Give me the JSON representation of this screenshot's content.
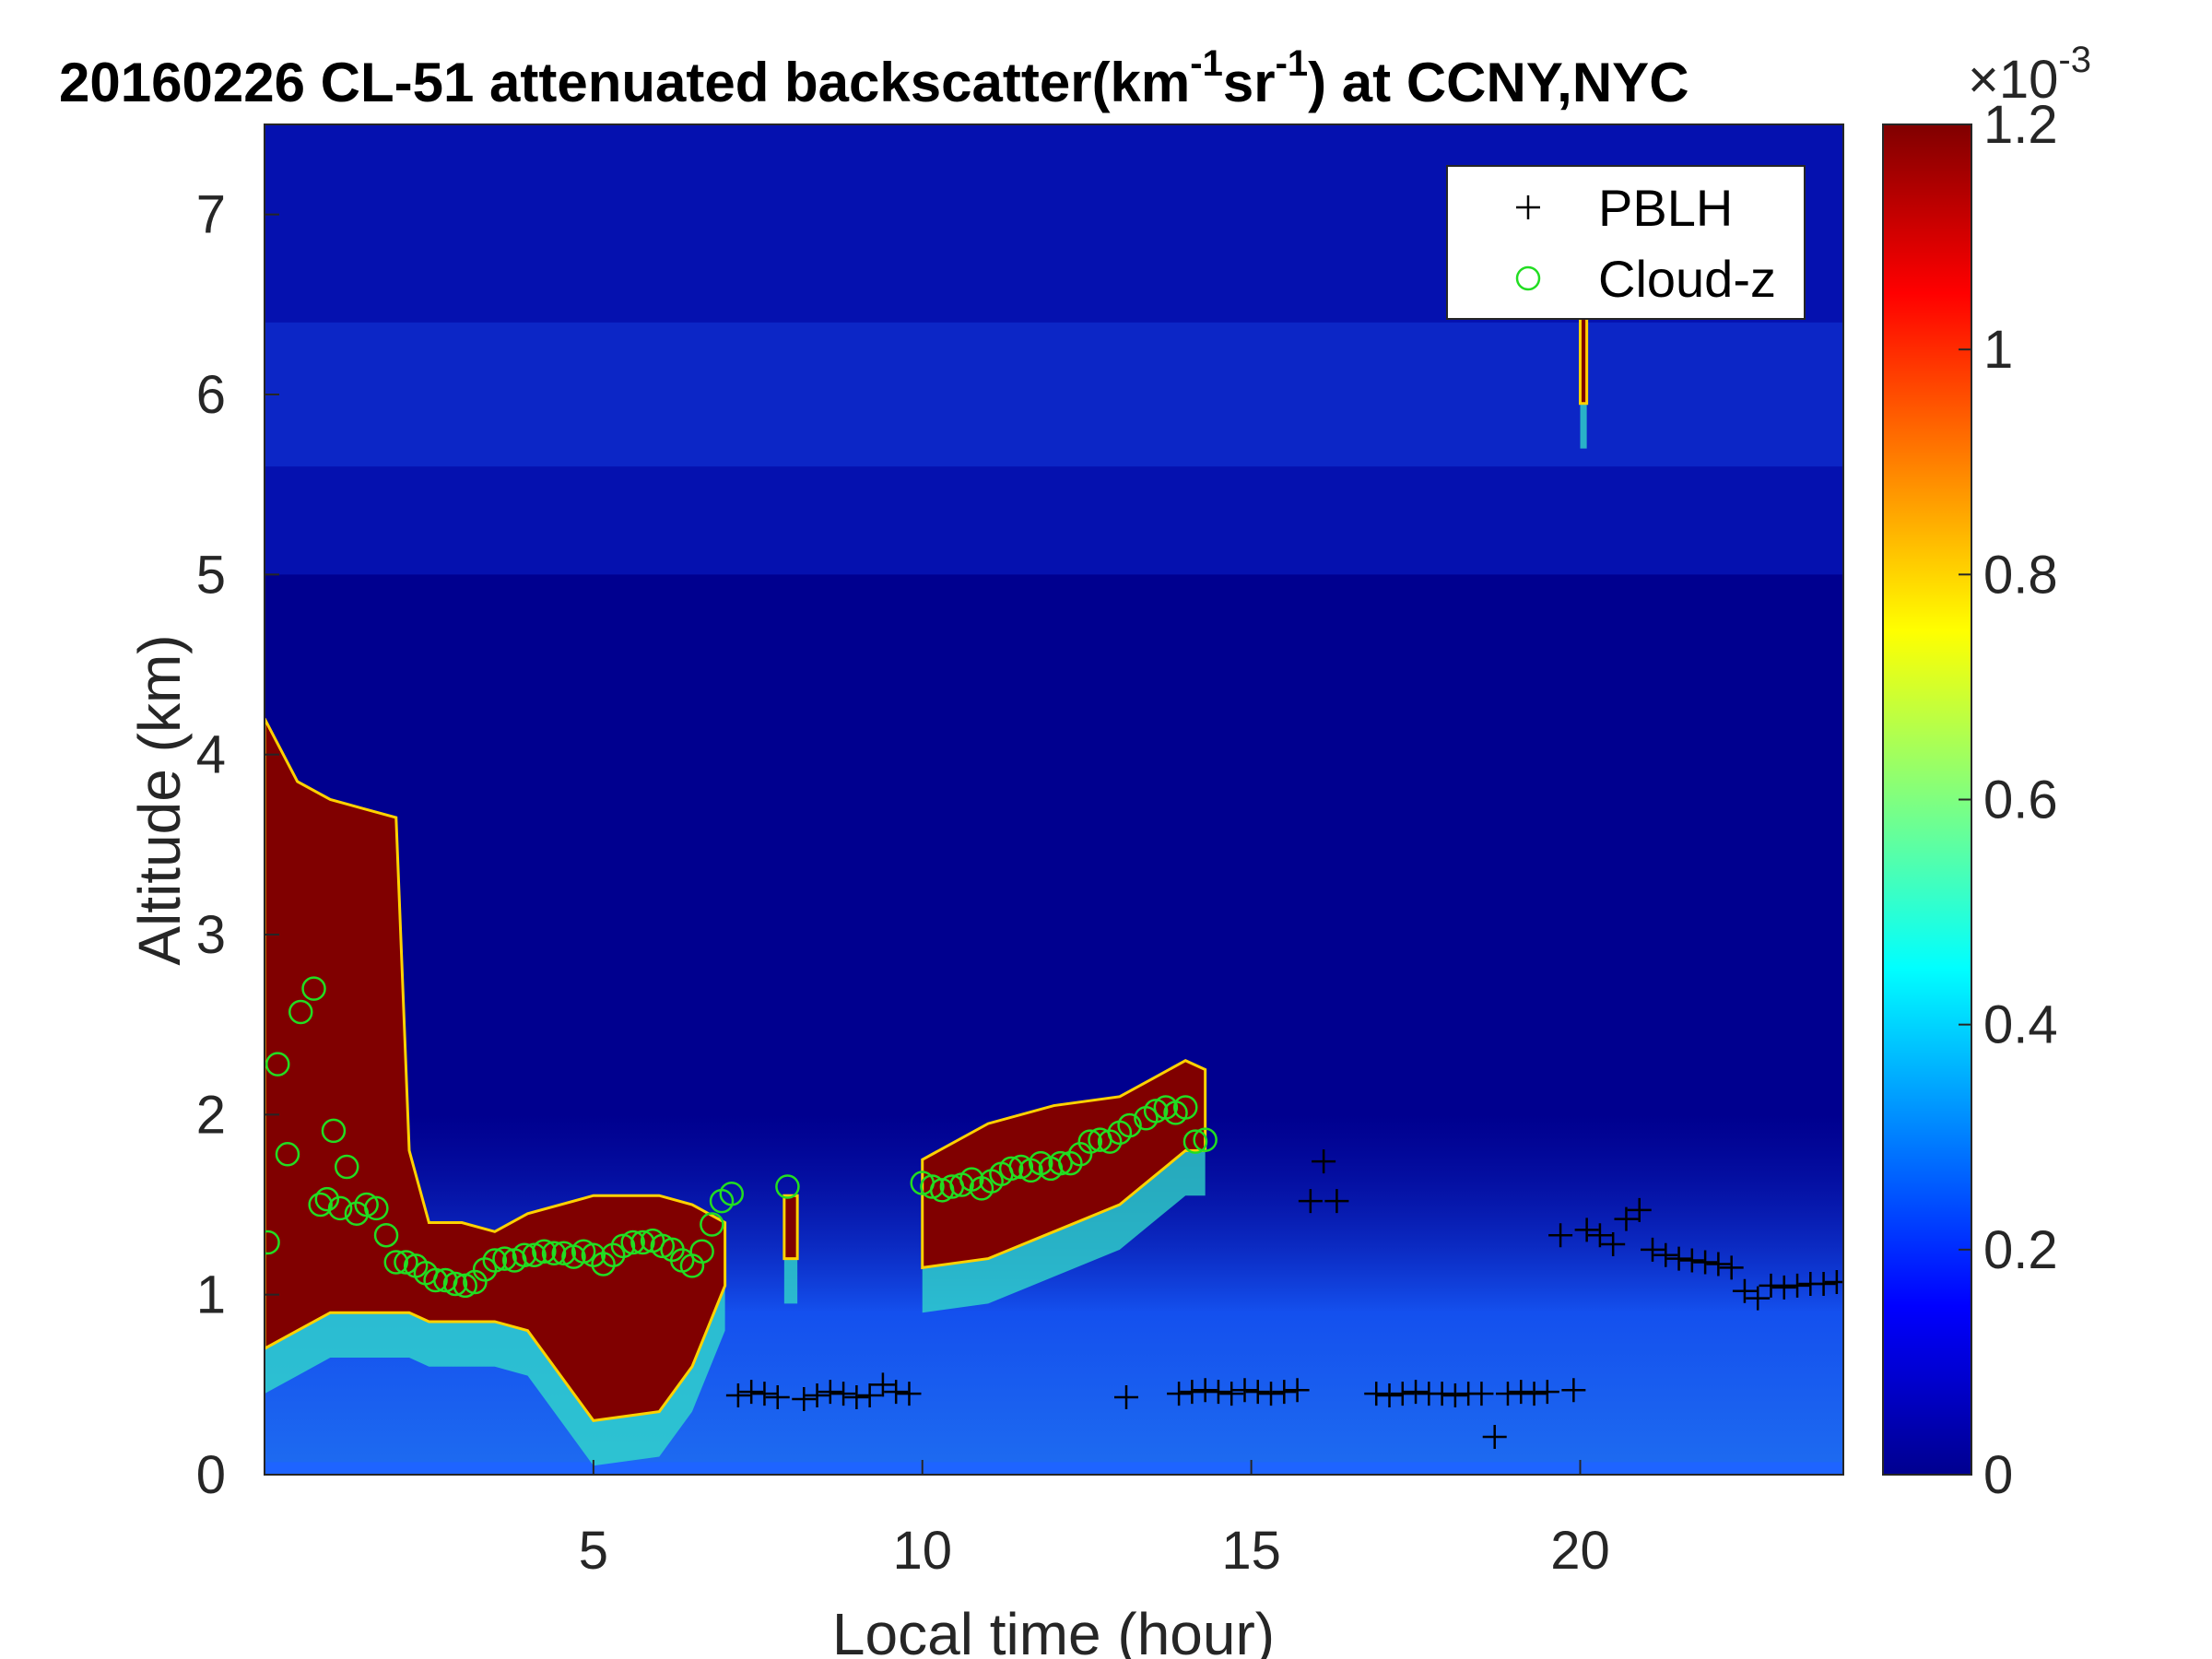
{
  "chart_data": {
    "type": "heatmap",
    "title": {
      "prefix": "20160226  CL-51 attenuated backscatter(km",
      "sup1": "-1",
      "mid": "sr",
      "sup2": "-1",
      "suffix": ") at CCNY,NYC"
    },
    "xlabel": "Local time (hour)",
    "ylabel": "Altitude (km)",
    "xlim": [
      0,
      24
    ],
    "ylim": [
      0,
      7.5
    ],
    "xticks": [
      "5",
      "10",
      "15",
      "20"
    ],
    "xtick_values": [
      5,
      10,
      15,
      20
    ],
    "yticks": [
      "0",
      "1",
      "2",
      "3",
      "4",
      "5",
      "6",
      "7"
    ],
    "ytick_values": [
      0,
      1,
      2,
      3,
      4,
      5,
      6,
      7
    ],
    "colorbar": {
      "colormap": "jet",
      "range": [
        0,
        0.0012
      ],
      "ticks": [
        "0",
        "0.2",
        "0.4",
        "0.6",
        "0.8",
        "1",
        "1.2"
      ],
      "tick_values": [
        0,
        0.2,
        0.4,
        0.6,
        0.8,
        1.0,
        1.2
      ],
      "exponent_label": "×10",
      "exponent_sup": "-3"
    },
    "legend": {
      "placement": "top-right",
      "entries": [
        {
          "label": "PBLH",
          "marker": "+",
          "color": "#000000"
        },
        {
          "label": "Cloud-z",
          "marker": "o",
          "color": "#22dd22"
        }
      ]
    },
    "cloud_layers": [
      {
        "x": [
          0.0,
          0.5,
          1.0,
          1.5,
          2.0,
          2.2,
          2.5,
          3.0,
          3.5,
          4.0,
          5.0,
          6.0,
          6.5,
          7.0
        ],
        "top": [
          4.2,
          3.85,
          3.75,
          3.7,
          3.65,
          1.8,
          1.4,
          1.4,
          1.35,
          1.45,
          1.55,
          1.55,
          1.5,
          1.4
        ],
        "bottom": [
          0.7,
          0.8,
          0.9,
          0.9,
          0.9,
          0.9,
          0.85,
          0.85,
          0.85,
          0.8,
          0.3,
          0.35,
          0.6,
          1.05
        ]
      },
      {
        "x": [
          7.9,
          8.1
        ],
        "top": [
          1.55,
          1.55
        ],
        "bottom": [
          1.2,
          1.2
        ]
      },
      {
        "x": [
          10.0,
          11.0,
          12.0,
          13.0,
          13.5,
          14.0,
          14.3
        ],
        "top": [
          1.75,
          1.95,
          2.05,
          2.1,
          2.2,
          2.3,
          2.25
        ],
        "bottom": [
          1.15,
          1.2,
          1.35,
          1.5,
          1.65,
          1.8,
          1.8
        ]
      },
      {
        "x": [
          20.0,
          20.1
        ],
        "top": [
          6.45,
          6.45
        ],
        "bottom": [
          5.95,
          5.95
        ]
      }
    ],
    "series": [
      {
        "name": "PBLH",
        "marker": "+",
        "x": [
          7.2,
          7.4,
          7.6,
          7.8,
          8.2,
          8.4,
          8.6,
          8.8,
          9.0,
          9.2,
          9.4,
          9.6,
          9.8,
          13.1,
          13.9,
          14.1,
          14.3,
          14.5,
          14.7,
          14.9,
          15.1,
          15.3,
          15.5,
          15.7,
          15.9,
          16.1,
          16.3,
          16.9,
          17.1,
          17.3,
          17.5,
          17.7,
          17.9,
          18.1,
          18.3,
          18.5,
          18.7,
          18.9,
          19.1,
          19.3,
          19.5,
          19.7,
          19.9,
          20.1,
          20.3,
          20.5,
          20.7,
          20.9,
          21.1,
          21.3,
          21.5,
          21.7,
          21.9,
          22.1,
          22.3,
          22.5,
          22.7,
          22.9,
          23.1,
          23.3,
          23.5,
          23.7,
          23.9
        ],
        "y": [
          0.44,
          0.46,
          0.45,
          0.43,
          0.42,
          0.44,
          0.46,
          0.45,
          0.43,
          0.44,
          0.5,
          0.46,
          0.45,
          0.43,
          0.45,
          0.46,
          0.47,
          0.46,
          0.45,
          0.47,
          0.46,
          0.45,
          0.46,
          0.47,
          1.52,
          1.74,
          1.52,
          0.45,
          0.44,
          0.45,
          0.46,
          0.45,
          0.45,
          0.44,
          0.45,
          0.45,
          0.21,
          0.45,
          0.46,
          0.45,
          0.46,
          1.33,
          0.47,
          1.36,
          1.33,
          1.28,
          1.42,
          1.47,
          1.25,
          1.22,
          1.2,
          1.19,
          1.18,
          1.17,
          1.15,
          1.02,
          0.98,
          1.05,
          1.04,
          1.05,
          1.06,
          1.06,
          1.07
        ]
      },
      {
        "name": "Cloud-z",
        "marker": "o",
        "x": [
          0.05,
          0.2,
          0.35,
          0.55,
          0.75,
          0.85,
          0.95,
          1.05,
          1.15,
          1.25,
          1.4,
          1.55,
          1.7,
          1.85,
          2.0,
          2.15,
          2.3,
          2.45,
          2.6,
          2.75,
          2.9,
          3.05,
          3.2,
          3.35,
          3.5,
          3.65,
          3.8,
          3.95,
          4.1,
          4.25,
          4.4,
          4.55,
          4.7,
          4.85,
          5.0,
          5.15,
          5.3,
          5.45,
          5.6,
          5.75,
          5.9,
          6.05,
          6.2,
          6.35,
          6.5,
          6.65,
          6.8,
          6.95,
          7.1,
          7.95,
          10.0,
          10.15,
          10.3,
          10.45,
          10.6,
          10.75,
          10.9,
          11.05,
          11.2,
          11.35,
          11.5,
          11.65,
          11.8,
          11.95,
          12.1,
          12.25,
          12.4,
          12.55,
          12.7,
          12.85,
          13.0,
          13.15,
          13.4,
          13.55,
          13.7,
          13.85,
          14.0,
          14.15,
          14.3
        ],
        "y": [
          1.29,
          2.28,
          1.78,
          2.57,
          2.7,
          1.5,
          1.53,
          1.91,
          1.48,
          1.71,
          1.45,
          1.5,
          1.48,
          1.33,
          1.18,
          1.18,
          1.16,
          1.12,
          1.08,
          1.08,
          1.06,
          1.05,
          1.07,
          1.14,
          1.19,
          1.2,
          1.19,
          1.22,
          1.22,
          1.24,
          1.23,
          1.23,
          1.21,
          1.24,
          1.22,
          1.17,
          1.22,
          1.27,
          1.29,
          1.29,
          1.3,
          1.27,
          1.25,
          1.19,
          1.16,
          1.24,
          1.39,
          1.52,
          1.56,
          1.6,
          1.62,
          1.6,
          1.58,
          1.6,
          1.61,
          1.64,
          1.59,
          1.63,
          1.67,
          1.7,
          1.71,
          1.69,
          1.73,
          1.7,
          1.73,
          1.73,
          1.78,
          1.85,
          1.86,
          1.85,
          1.9,
          1.94,
          1.98,
          2.02,
          2.04,
          2.01,
          2.04,
          1.85,
          1.86
        ]
      }
    ]
  }
}
